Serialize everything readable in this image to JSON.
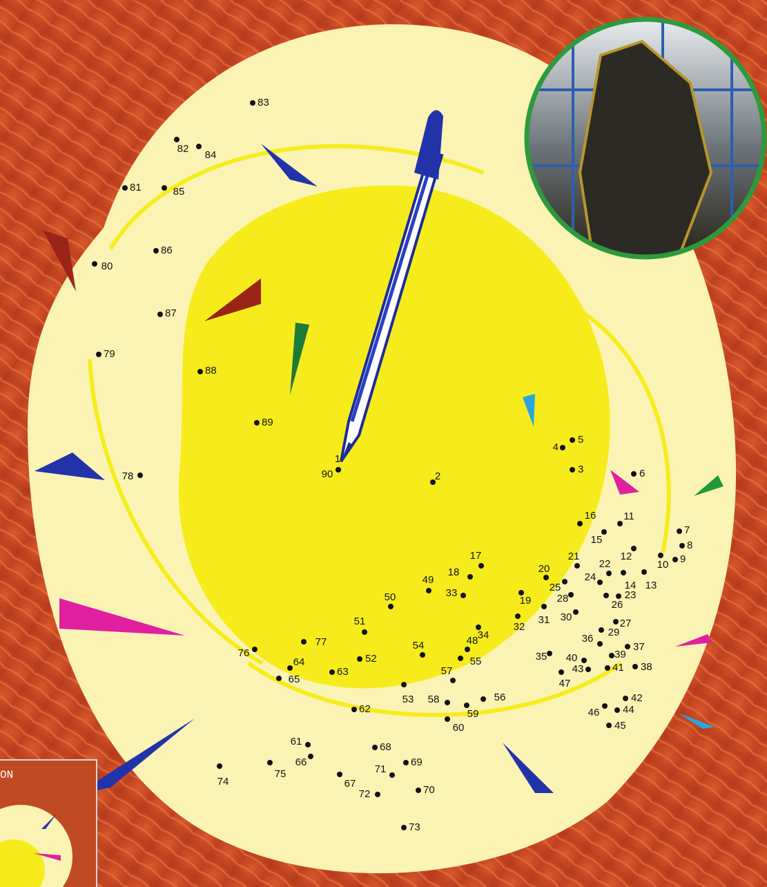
{
  "dots": [
    1,
    2,
    3,
    4,
    5,
    6,
    7,
    8,
    9,
    10,
    11,
    12,
    13,
    14,
    15,
    16,
    17,
    18,
    19,
    20,
    21,
    22,
    23,
    24,
    25,
    26,
    27,
    28,
    29,
    30,
    31,
    32,
    33,
    34,
    35,
    36,
    37,
    38,
    39,
    40,
    41,
    42,
    43,
    44,
    45,
    46,
    47,
    48,
    49,
    50,
    51,
    52,
    53,
    54,
    55,
    56,
    57,
    58,
    59,
    60,
    61,
    62,
    63,
    64,
    65,
    66,
    67,
    68,
    69,
    70,
    71,
    72,
    73,
    74,
    75,
    76,
    77,
    78,
    79,
    80,
    81,
    82,
    83,
    84,
    85,
    86,
    87,
    88,
    89,
    90
  ],
  "inset_label": "ON"
}
